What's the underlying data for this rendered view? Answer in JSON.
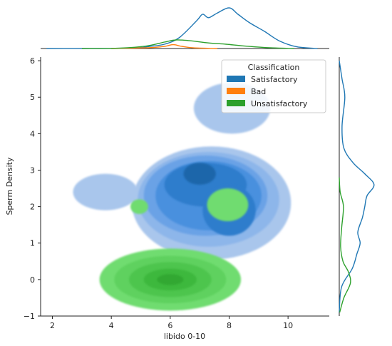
{
  "chart_data": {
    "type": "joint_kde",
    "xlabel": "libido 0-10",
    "ylabel": "Sperm Density",
    "xlim": [
      1.6,
      11.4
    ],
    "ylim": [
      -1,
      6.1
    ],
    "x_ticks": [
      2,
      4,
      6,
      8,
      10
    ],
    "y_ticks": [
      -1,
      0,
      1,
      2,
      3,
      4,
      5,
      6
    ],
    "x_tick_labels": [
      "2",
      "4",
      "6",
      "8",
      "10"
    ],
    "y_tick_labels": [
      "−1",
      "0",
      "1",
      "2",
      "3",
      "4",
      "5",
      "6"
    ],
    "grid": false,
    "legend": {
      "title": "Classification",
      "position": "upper right",
      "entries": [
        {
          "label": "Satisfactory",
          "color": "#1f77b4"
        },
        {
          "label": "Bad",
          "color": "#ff7f0e"
        },
        {
          "label": "Unsatisfactory",
          "color": "#2ca02c"
        }
      ]
    },
    "series": [
      {
        "name": "Satisfactory",
        "color": "#1f77b4",
        "kde_regions": [
          {
            "cx": 8.1,
            "cy": 4.7,
            "rx": 1.3,
            "ry": 0.7,
            "level": 1
          },
          {
            "cx": 3.8,
            "cy": 2.4,
            "rx": 1.1,
            "ry": 0.5,
            "level": 1
          },
          {
            "cx": 7.4,
            "cy": 2.1,
            "rx": 2.7,
            "ry": 1.55,
            "level": 1
          },
          {
            "cx": 7.3,
            "cy": 2.2,
            "rx": 2.4,
            "ry": 1.3,
            "level": 2
          },
          {
            "cx": 7.2,
            "cy": 2.3,
            "rx": 2.1,
            "ry": 1.1,
            "level": 3
          },
          {
            "cx": 7.3,
            "cy": 2.3,
            "rx": 1.8,
            "ry": 0.95,
            "level": 4
          },
          {
            "cx": 7.2,
            "cy": 2.6,
            "rx": 1.4,
            "ry": 0.6,
            "level": 5
          },
          {
            "cx": 8.0,
            "cy": 1.9,
            "rx": 0.9,
            "ry": 0.7,
            "level": 5
          },
          {
            "cx": 7.0,
            "cy": 2.9,
            "rx": 0.55,
            "ry": 0.3,
            "level": 6
          }
        ],
        "marginal_x": [
          [
            1.8,
            0
          ],
          [
            4.6,
            0.01
          ],
          [
            5.3,
            0.05
          ],
          [
            5.8,
            0.1
          ],
          [
            6.3,
            0.25
          ],
          [
            6.9,
            0.65
          ],
          [
            7.1,
            0.8
          ],
          [
            7.3,
            0.72
          ],
          [
            7.6,
            0.83
          ],
          [
            8.0,
            0.95
          ],
          [
            8.3,
            0.8
          ],
          [
            8.7,
            0.6
          ],
          [
            9.2,
            0.4
          ],
          [
            9.7,
            0.18
          ],
          [
            10.3,
            0.04
          ],
          [
            11.0,
            0
          ]
        ],
        "marginal_y": [
          [
            -0.9,
            0
          ],
          [
            -0.2,
            0.05
          ],
          [
            0.3,
            0.28
          ],
          [
            0.7,
            0.38
          ],
          [
            1.0,
            0.45
          ],
          [
            1.3,
            0.4
          ],
          [
            1.7,
            0.5
          ],
          [
            2.0,
            0.55
          ],
          [
            2.3,
            0.6
          ],
          [
            2.6,
            0.75
          ],
          [
            2.9,
            0.55
          ],
          [
            3.2,
            0.3
          ],
          [
            3.6,
            0.1
          ],
          [
            4.2,
            0.06
          ],
          [
            5.0,
            0.12
          ],
          [
            5.5,
            0.06
          ],
          [
            6.0,
            0
          ]
        ]
      },
      {
        "name": "Bad",
        "color": "#ff7f0e",
        "kde_regions": [],
        "marginal_x": [
          [
            4.0,
            0
          ],
          [
            5.3,
            0.02
          ],
          [
            5.8,
            0.05
          ],
          [
            6.1,
            0.09
          ],
          [
            6.4,
            0.05
          ],
          [
            6.8,
            0.015
          ],
          [
            7.6,
            0
          ]
        ],
        "marginal_y": []
      },
      {
        "name": "Unsatisfactory",
        "color": "#2ca02c",
        "kde_regions": [
          {
            "cx": 6.0,
            "cy": 0.0,
            "rx": 2.4,
            "ry": 0.85,
            "level": 1
          },
          {
            "cx": 6.0,
            "cy": 0.0,
            "rx": 1.9,
            "ry": 0.65,
            "level": 2
          },
          {
            "cx": 6.0,
            "cy": 0.0,
            "rx": 1.4,
            "ry": 0.48,
            "level": 3
          },
          {
            "cx": 6.0,
            "cy": 0.0,
            "rx": 0.9,
            "ry": 0.3,
            "level": 4
          },
          {
            "cx": 6.0,
            "cy": 0.0,
            "rx": 0.45,
            "ry": 0.15,
            "level": 5
          },
          {
            "cx": 7.95,
            "cy": 2.05,
            "rx": 0.7,
            "ry": 0.45,
            "level": 1
          },
          {
            "cx": 4.95,
            "cy": 2.0,
            "rx": 0.3,
            "ry": 0.2,
            "level": 1
          }
        ],
        "marginal_x": [
          [
            3.0,
            0
          ],
          [
            4.3,
            0.01
          ],
          [
            5.2,
            0.06
          ],
          [
            5.8,
            0.15
          ],
          [
            6.2,
            0.2
          ],
          [
            6.7,
            0.18
          ],
          [
            7.3,
            0.13
          ],
          [
            7.9,
            0.1
          ],
          [
            8.5,
            0.06
          ],
          [
            9.3,
            0.02
          ],
          [
            10.2,
            0
          ]
        ],
        "marginal_y": [
          [
            -0.9,
            0.01
          ],
          [
            -0.5,
            0.1
          ],
          [
            -0.1,
            0.24
          ],
          [
            0.2,
            0.2
          ],
          [
            0.5,
            0.08
          ],
          [
            0.9,
            0.03
          ],
          [
            1.4,
            0.05
          ],
          [
            2.0,
            0.09
          ],
          [
            2.4,
            0.02
          ],
          [
            2.8,
            0
          ]
        ]
      }
    ]
  }
}
